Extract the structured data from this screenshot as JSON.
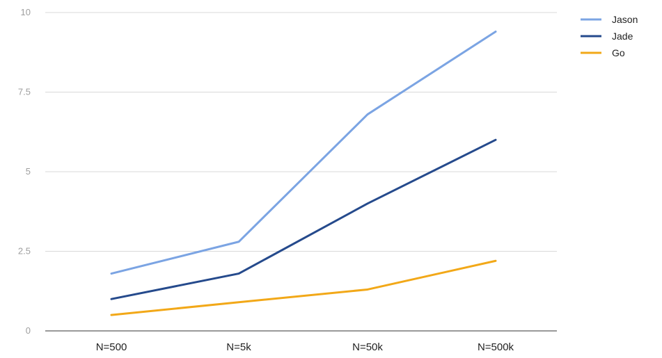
{
  "chart_data": {
    "type": "line",
    "categories": [
      "N=500",
      "N=5k",
      "N=50k",
      "N=500k"
    ],
    "series": [
      {
        "name": "Jason",
        "values": [
          1.8,
          2.8,
          6.8,
          9.4
        ],
        "color": "#7ba4e3"
      },
      {
        "name": "Jade",
        "values": [
          1.0,
          1.8,
          4.0,
          6.0
        ],
        "color": "#254a8c"
      },
      {
        "name": "Go",
        "values": [
          0.5,
          0.9,
          1.3,
          2.2
        ],
        "color": "#f2a818"
      }
    ],
    "yticks": [
      "0",
      "2.5",
      "5",
      "7.5",
      "10"
    ],
    "ylim": [
      0,
      10
    ],
    "grid": true,
    "legend": "top-right",
    "title": "",
    "xlabel": "",
    "ylabel": ""
  }
}
